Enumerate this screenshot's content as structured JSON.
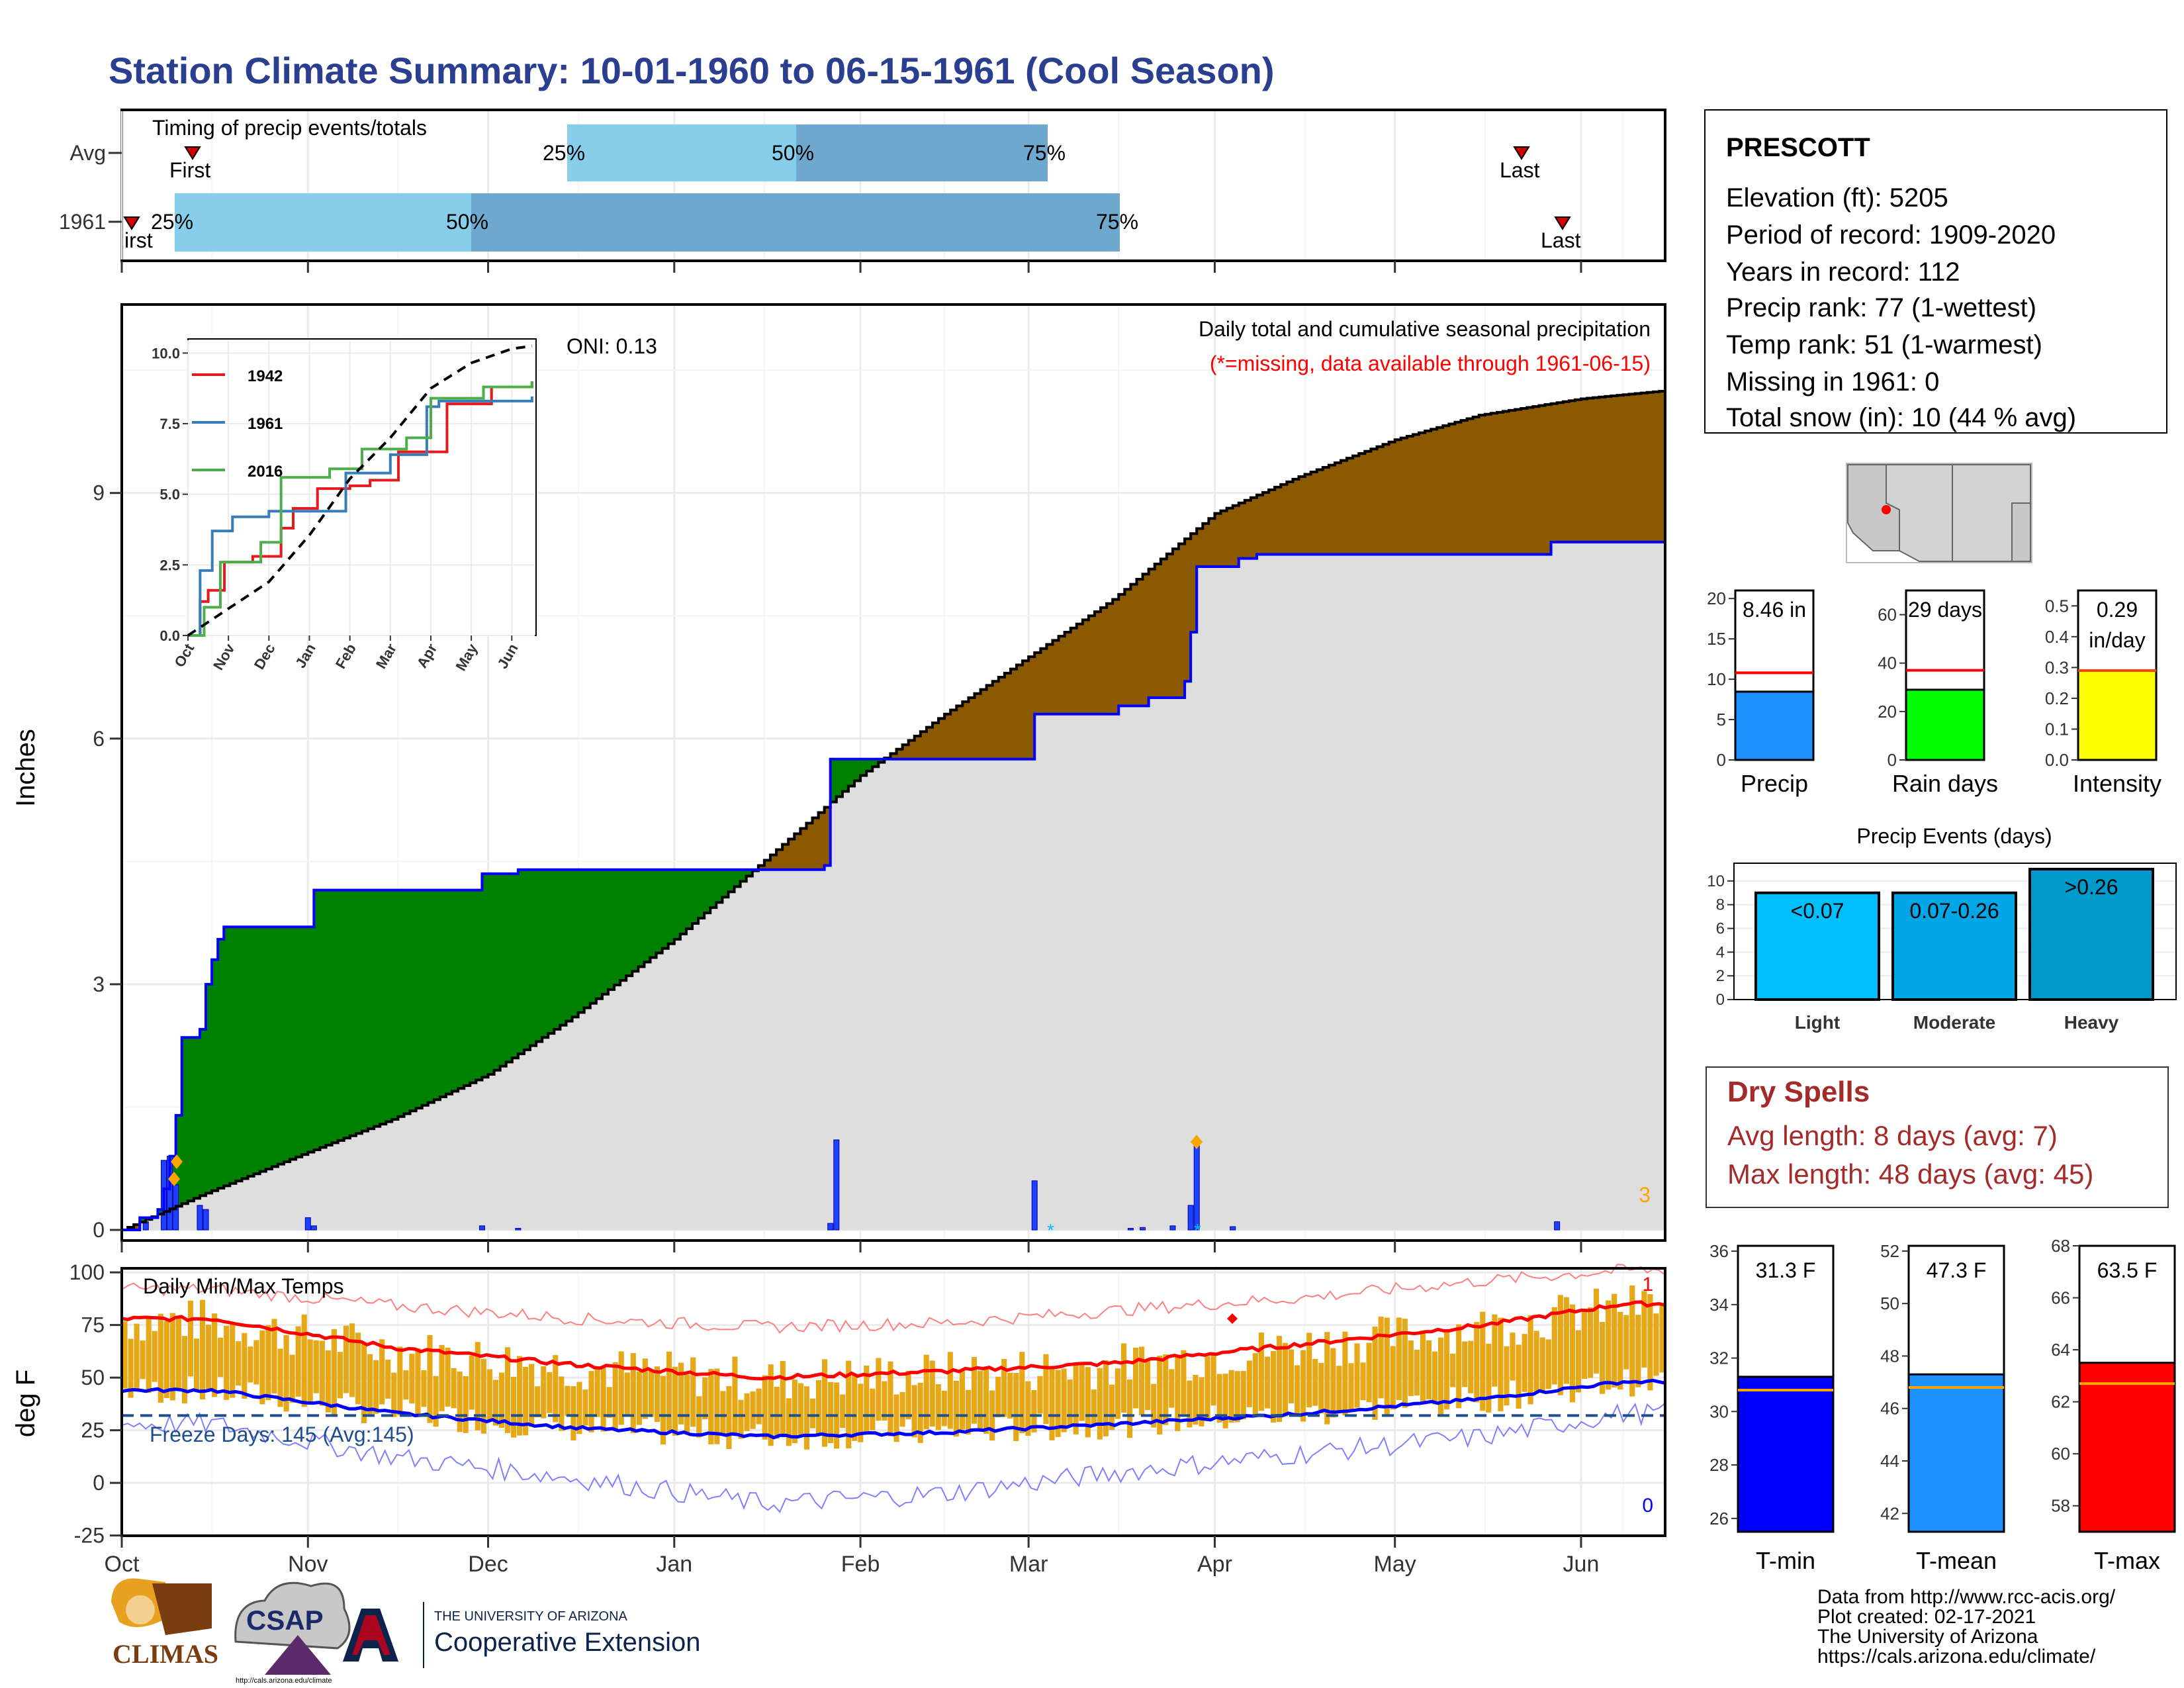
{
  "title": "Station Climate Summary: 10-01-1960 to 06-15-1961 (Cool Season)",
  "timing_panel": {
    "label": "Timing of precip events/totals",
    "rows": [
      "Avg",
      "1961"
    ],
    "first_label": "First",
    "last_label": "Last",
    "pct_labels": [
      "25%",
      "50%",
      "75%"
    ]
  },
  "station": {
    "name": "PRESCOTT",
    "lines": [
      "Elevation (ft): 5205",
      "Period of record: 1909-2020",
      "Years in record: 112",
      "Precip rank: 77 (1-wettest)",
      "Temp rank: 51 (1-warmest)",
      "Missing in 1961: 0",
      "Total snow (in): 10 (44 % avg)"
    ]
  },
  "main_precip": {
    "ylabel": "Inches",
    "oni": "ONI: 0.13",
    "subtitle": "Daily total and cumulative seasonal precipitation",
    "missing_note": "(*=missing, data available through 1961-06-15)",
    "corner_count": "3"
  },
  "inset": {
    "legend": [
      "1942",
      "1961",
      "2016"
    ],
    "colors": [
      "#e41a1c",
      "#377eb8",
      "#4daf4a"
    ]
  },
  "summary_bars": [
    {
      "label": "Precip",
      "value_text": "8.46 in",
      "value": 8.46,
      "avg": 10.8,
      "ymax": 21,
      "ticks": [
        "0",
        "5",
        "10",
        "15",
        "20"
      ],
      "color": "#1e90ff"
    },
    {
      "label": "Rain days",
      "value_text": "29 days",
      "value": 29,
      "avg": 37,
      "ymax": 70,
      "ticks": [
        "0",
        "20",
        "40",
        "60"
      ],
      "color": "#00ff00"
    },
    {
      "label": "Intensity",
      "value_text": "0.29 in/day",
      "value": 0.29,
      "avg": 0.29,
      "ymax": 0.55,
      "ticks": [
        "0.0",
        "0.1",
        "0.2",
        "0.3",
        "0.4",
        "0.5"
      ],
      "color": "#ffff00"
    }
  ],
  "precip_events": {
    "title": "Precip Events (days)",
    "categories": [
      "Light",
      "Moderate",
      "Heavy"
    ],
    "bin_labels": [
      "<0.07",
      "0.07-0.26",
      ">0.26"
    ],
    "values": [
      9,
      9,
      11
    ],
    "ticks": [
      "0",
      "2",
      "4",
      "6",
      "8",
      "10"
    ],
    "colors": [
      "#00bfff",
      "#00a6e6",
      "#0099cc"
    ]
  },
  "dry_spells": {
    "title": "Dry Spells",
    "avg_line": "Avg length: 8 days (avg: 7)",
    "max_line": "Max length: 48 days (avg: 45)"
  },
  "temp_panel": {
    "label": "Daily Min/Max Temps",
    "ylabel": "deg F",
    "freeze": "Freeze Days: 145 (Avg:145)",
    "count_hot": "1",
    "count_cold": "0",
    "yticks": [
      "100",
      "75",
      "50",
      "25",
      "0",
      "-25"
    ]
  },
  "x_months": [
    "Oct",
    "Nov",
    "Dec",
    "Jan",
    "Feb",
    "Mar",
    "Apr",
    "May",
    "Jun"
  ],
  "temp_bars": [
    {
      "label": "T-min",
      "value_text": "31.3 F",
      "value": 31.3,
      "avg": 30.8,
      "ymin": 25.5,
      "ymax": 36.2,
      "ticks": [
        "26",
        "28",
        "30",
        "32",
        "34",
        "36"
      ],
      "color": "#0000ff"
    },
    {
      "label": "T-mean",
      "value_text": "47.3 F",
      "value": 47.3,
      "avg": 46.8,
      "ymin": 41.3,
      "ymax": 52.2,
      "ticks": [
        "42",
        "44",
        "46",
        "48",
        "50",
        "52"
      ],
      "color": "#1e90ff"
    },
    {
      "label": "T-max",
      "value_text": "63.5 F",
      "value": 63.5,
      "avg": 62.7,
      "ymin": 57.0,
      "ymax": 68.0,
      "ticks": [
        "58",
        "60",
        "62",
        "64",
        "66",
        "68"
      ],
      "color": "#ff0000"
    }
  ],
  "credits": [
    "Data from http://www.rcc-acis.org/",
    "Plot created: 02-17-2021",
    "The University of Arizona",
    "https://cals.arizona.edu/climate/"
  ],
  "logos": {
    "climas": "CLIMAS",
    "csap": "CSAP",
    "csap_url": "http://cals.arizona.edu/climate",
    "ua_small": "THE UNIVERSITY OF ARIZONA",
    "ua_big": "Cooperative Extension"
  },
  "chart_data": [
    {
      "type": "area",
      "title": "Daily total and cumulative seasonal precipitation",
      "ylabel": "Inches",
      "ylim": [
        0,
        11.3
      ],
      "yticks": [
        0,
        3,
        6,
        9
      ],
      "x_range": [
        "1960-10-01",
        "1961-06-15"
      ],
      "series": [
        {
          "name": "1961",
          "points": [
            [
              "1960-10-01",
              0
            ],
            [
              "1960-10-04",
              0.15
            ],
            [
              "1960-10-07",
              0.25
            ],
            [
              "1960-10-08",
              0.5
            ],
            [
              "1960-10-09",
              0.9
            ],
            [
              "1960-10-10",
              1.4
            ],
            [
              "1960-10-11",
              2.35
            ],
            [
              "1960-10-14",
              2.45
            ],
            [
              "1960-10-15",
              3.0
            ],
            [
              "1960-10-16",
              3.3
            ],
            [
              "1960-10-17",
              3.55
            ],
            [
              "1960-10-18",
              3.7
            ],
            [
              "1960-11-01",
              3.7
            ],
            [
              "1960-11-02",
              4.15
            ],
            [
              "1960-11-30",
              4.35
            ],
            [
              "1960-12-06",
              4.4
            ],
            [
              "1961-01-26",
              4.45
            ],
            [
              "1961-01-27",
              5.75
            ],
            [
              "1961-02-06",
              5.75
            ],
            [
              "1961-03-02",
              6.3
            ],
            [
              "1961-03-16",
              6.4
            ],
            [
              "1961-03-21",
              6.5
            ],
            [
              "1961-03-27",
              6.7
            ],
            [
              "1961-03-28",
              7.3
            ],
            [
              "1961-03-29",
              8.1
            ],
            [
              "1961-04-05",
              8.2
            ],
            [
              "1961-04-08",
              8.25
            ],
            [
              "1961-05-27",
              8.4
            ],
            [
              "1961-06-15",
              8.46
            ]
          ]
        },
        {
          "name": "Avg",
          "points": [
            [
              "1960-10-01",
              0
            ],
            [
              "1960-10-15",
              0.45
            ],
            [
              "1960-11-01",
              0.95
            ],
            [
              "1960-11-15",
              1.35
            ],
            [
              "1960-12-01",
              1.9
            ],
            [
              "1960-12-15",
              2.6
            ],
            [
              "1961-01-01",
              3.55
            ],
            [
              "1961-01-15",
              4.45
            ],
            [
              "1961-02-01",
              5.55
            ],
            [
              "1961-02-15",
              6.3
            ],
            [
              "1961-03-01",
              7.0
            ],
            [
              "1961-03-15",
              7.7
            ],
            [
              "1961-04-01",
              8.75
            ],
            [
              "1961-04-15",
              9.2
            ],
            [
              "1961-05-01",
              9.65
            ],
            [
              "1961-05-15",
              9.95
            ],
            [
              "1961-06-01",
              10.15
            ],
            [
              "1961-06-15",
              10.25
            ]
          ]
        }
      ],
      "daily_precip": [
        [
          "1960-10-05",
          0.1
        ],
        [
          "1960-10-08",
          0.85
        ],
        [
          "1960-10-09",
          0.9
        ],
        [
          "1960-10-10",
          0.55
        ],
        [
          "1960-10-14",
          0.3
        ],
        [
          "1960-10-15",
          0.25
        ],
        [
          "1960-11-01",
          0.15
        ],
        [
          "1960-11-02",
          0.05
        ],
        [
          "1960-11-30",
          0.05
        ],
        [
          "1960-12-06",
          0.02
        ],
        [
          "1961-01-27",
          0.08
        ],
        [
          "1961-01-28",
          1.1
        ],
        [
          "1961-03-02",
          0.6
        ],
        [
          "1961-03-18",
          0.02
        ],
        [
          "1961-03-20",
          0.03
        ],
        [
          "1961-03-25",
          0.05
        ],
        [
          "1961-03-28",
          0.3
        ],
        [
          "1961-03-29",
          1.1
        ],
        [
          "1961-04-04",
          0.04
        ],
        [
          "1961-05-28",
          0.1
        ]
      ]
    },
    {
      "type": "line",
      "title": "",
      "x": [
        "Oct",
        "Nov",
        "Dec",
        "Jan",
        "Feb",
        "Mar",
        "Apr",
        "May",
        "Jun"
      ],
      "ylim": [
        0,
        10.5
      ],
      "yticks": [
        0,
        2.5,
        5.0,
        7.5,
        10.0
      ],
      "series": [
        {
          "name": "1942",
          "points": [
            [
              0,
              0
            ],
            [
              0.3,
              1.2
            ],
            [
              0.5,
              1.6
            ],
            [
              0.9,
              2.6
            ],
            [
              1.6,
              2.8
            ],
            [
              2.3,
              3.8
            ],
            [
              2.6,
              4.5
            ],
            [
              3.2,
              5.2
            ],
            [
              4.0,
              5.3
            ],
            [
              4.5,
              5.5
            ],
            [
              5.2,
              6.5
            ],
            [
              6.4,
              8.2
            ],
            [
              7.5,
              8.8
            ],
            [
              8.5,
              9.0
            ]
          ]
        },
        {
          "name": "1961",
          "points": [
            [
              0,
              0
            ],
            [
              0.3,
              2.3
            ],
            [
              0.6,
              3.7
            ],
            [
              1.1,
              4.2
            ],
            [
              2.0,
              4.4
            ],
            [
              3.9,
              5.75
            ],
            [
              5.0,
              6.4
            ],
            [
              5.9,
              8.1
            ],
            [
              6.2,
              8.3
            ],
            [
              8.5,
              8.46
            ]
          ]
        },
        {
          "name": "2016",
          "points": [
            [
              0,
              0
            ],
            [
              0.4,
              1.0
            ],
            [
              0.8,
              2.6
            ],
            [
              1.8,
              3.3
            ],
            [
              2.3,
              5.6
            ],
            [
              3.5,
              5.9
            ],
            [
              4.3,
              6.6
            ],
            [
              5.4,
              7.0
            ],
            [
              6.0,
              8.4
            ],
            [
              7.3,
              8.8
            ],
            [
              8.5,
              9.0
            ]
          ]
        },
        {
          "name": "Avg",
          "points": [
            [
              0,
              0
            ],
            [
              1,
              0.95
            ],
            [
              2,
              1.9
            ],
            [
              3,
              3.55
            ],
            [
              4,
              5.55
            ],
            [
              5,
              7.0
            ],
            [
              6,
              8.75
            ],
            [
              7,
              9.65
            ],
            [
              8,
              10.15
            ],
            [
              8.5,
              10.25
            ]
          ]
        }
      ]
    },
    {
      "type": "line",
      "title": "Daily Min/Max Temps",
      "ylabel": "deg F",
      "ylim": [
        -25,
        102
      ],
      "x": [
        "Oct",
        "Nov",
        "Dec",
        "Jan",
        "Feb",
        "Mar",
        "Apr",
        "May",
        "Jun"
      ],
      "series": [
        {
          "name": "Avg max",
          "values": [
            78,
            64,
            56,
            50,
            53,
            57,
            66,
            75,
            85
          ]
        },
        {
          "name": "Avg min",
          "values": [
            44,
            33,
            26,
            22,
            24,
            28,
            33,
            40,
            48
          ]
        },
        {
          "name": "Record max",
          "values": [
            92,
            84,
            78,
            74,
            76,
            82,
            88,
            96,
            101
          ]
        },
        {
          "name": "Record min",
          "values": [
            28,
            12,
            2,
            -10,
            -5,
            5,
            14,
            22,
            33
          ]
        }
      ],
      "freeze_threshold": 32
    },
    {
      "type": "bar",
      "title": "Precip Events (days)",
      "categories": [
        "Light",
        "Moderate",
        "Heavy"
      ],
      "values": [
        9,
        9,
        11
      ],
      "ylim": [
        0,
        11.5
      ]
    },
    {
      "type": "bar",
      "categories": [
        "Precip",
        "Rain days",
        "Intensity"
      ],
      "values": [
        8.46,
        29,
        0.29
      ]
    },
    {
      "type": "bar",
      "categories": [
        "T-min",
        "T-mean",
        "T-max"
      ],
      "values": [
        31.3,
        47.3,
        63.5
      ]
    }
  ]
}
